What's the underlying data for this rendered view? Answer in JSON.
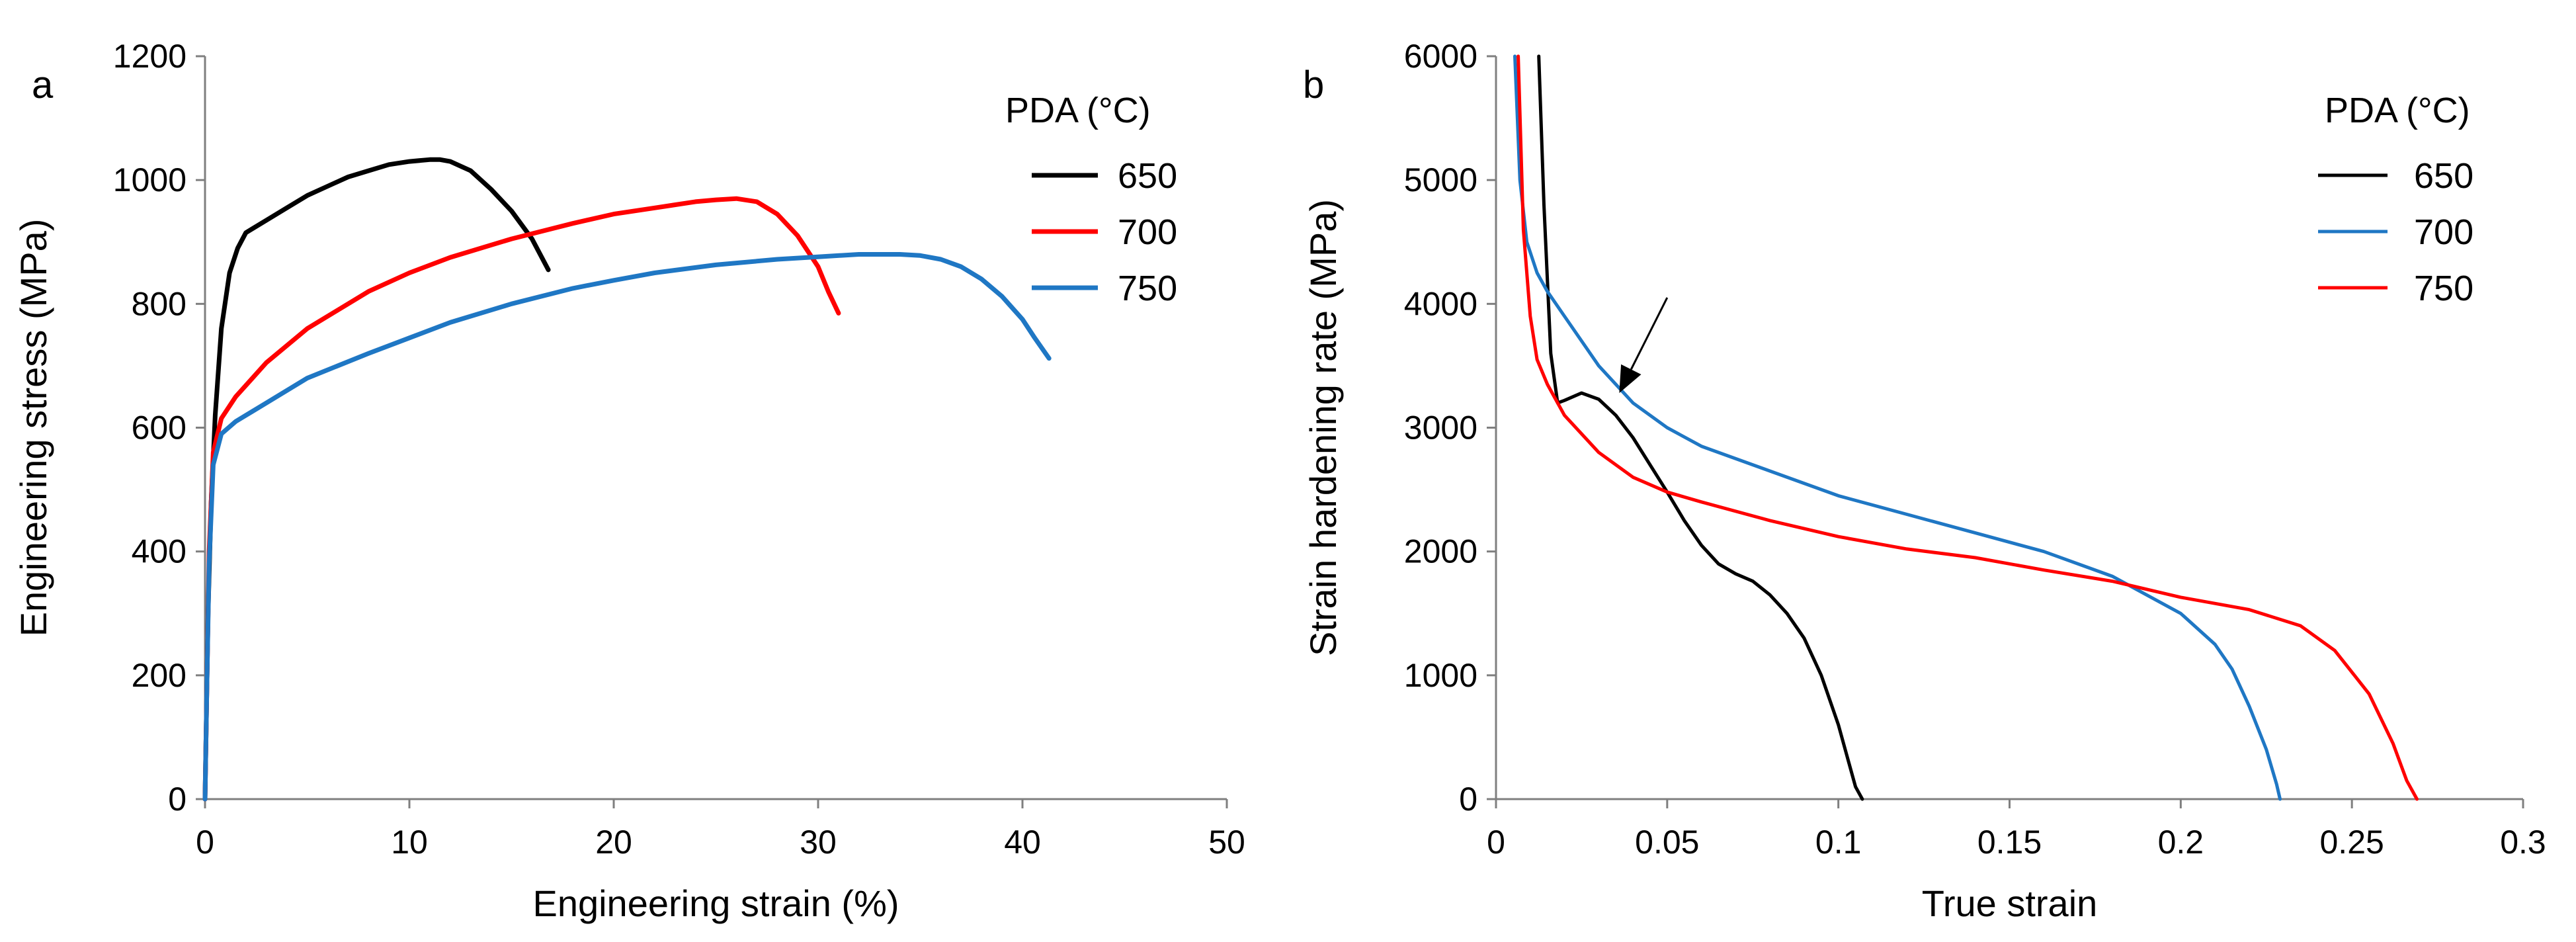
{
  "chart_data": [
    {
      "panel": "a",
      "type": "line",
      "xlabel": "Engineering strain (%)",
      "ylabel": "Engineering stress (MPa)",
      "xlim": [
        0,
        50
      ],
      "ylim": [
        0,
        1200
      ],
      "xticks": [
        0,
        10,
        20,
        30,
        40,
        50
      ],
      "yticks": [
        0,
        200,
        400,
        600,
        800,
        1000,
        1200
      ],
      "legend_title": "PDA (°C)",
      "legend_position": "top-right",
      "series": [
        {
          "name": "650",
          "color": "#000000",
          "x": [
            0,
            0.15,
            0.3,
            0.5,
            0.8,
            1.2,
            1.6,
            2.0,
            3,
            4,
            5,
            6,
            7,
            8,
            9,
            10,
            11,
            11.5,
            12,
            13,
            14,
            15,
            16,
            16.8
          ],
          "y": [
            0,
            300,
            480,
            620,
            760,
            850,
            890,
            915,
            935,
            955,
            975,
            990,
            1005,
            1015,
            1025,
            1030,
            1033,
            1033,
            1030,
            1015,
            985,
            950,
            905,
            855
          ]
        },
        {
          "name": "700",
          "color": "#ff0000",
          "x": [
            0,
            0.1,
            0.2,
            0.4,
            0.8,
            1.5,
            3,
            5,
            8,
            10,
            12,
            15,
            18,
            20,
            22,
            24,
            25,
            26,
            27,
            28,
            29,
            30,
            30.5,
            31
          ],
          "y": [
            0,
            200,
            400,
            560,
            615,
            650,
            705,
            760,
            820,
            850,
            875,
            905,
            930,
            945,
            955,
            965,
            968,
            970,
            965,
            945,
            910,
            860,
            820,
            785
          ]
        },
        {
          "name": "750",
          "color": "#1f77c4",
          "x": [
            0,
            0.1,
            0.2,
            0.4,
            0.8,
            1.5,
            3,
            5,
            8,
            10,
            12,
            15,
            18,
            20,
            22,
            25,
            28,
            30,
            32,
            33,
            34,
            35,
            36,
            37,
            38,
            39,
            40,
            40.6,
            41.3
          ],
          "y": [
            0,
            200,
            380,
            540,
            590,
            610,
            640,
            680,
            720,
            745,
            770,
            800,
            825,
            838,
            850,
            863,
            872,
            876,
            880,
            880,
            880,
            878,
            872,
            860,
            840,
            812,
            775,
            745,
            712
          ]
        }
      ]
    },
    {
      "panel": "b",
      "type": "line",
      "xlabel": "True strain",
      "ylabel": "Strain hardening rate (MPa)",
      "xlim": [
        0,
        0.3
      ],
      "ylim": [
        0,
        6000
      ],
      "xticks": [
        "0",
        "0.05",
        "0.1",
        "0.15",
        "0.2",
        "0.25",
        "0.3"
      ],
      "yticks": [
        0,
        1000,
        2000,
        3000,
        4000,
        5000,
        6000
      ],
      "legend_title": "PDA (°C)",
      "legend_position": "top-right",
      "annotation": {
        "type": "arrow",
        "from": [
          0.05,
          4050
        ],
        "to": [
          0.036,
          3280
        ]
      },
      "series": [
        {
          "name": "650",
          "color": "#000000",
          "x": [
            0.0125,
            0.014,
            0.016,
            0.018,
            0.02,
            0.025,
            0.03,
            0.035,
            0.04,
            0.045,
            0.05,
            0.055,
            0.06,
            0.065,
            0.07,
            0.075,
            0.08,
            0.085,
            0.09,
            0.095,
            0.1,
            0.103,
            0.105,
            0.107
          ],
          "y": [
            6000,
            4800,
            3600,
            3200,
            3220,
            3280,
            3230,
            3100,
            2920,
            2700,
            2480,
            2250,
            2050,
            1900,
            1820,
            1760,
            1650,
            1500,
            1300,
            1000,
            600,
            300,
            100,
            0
          ]
        },
        {
          "name": "700",
          "color": "#1f77c4",
          "x": [
            0.0055,
            0.007,
            0.009,
            0.012,
            0.015,
            0.02,
            0.03,
            0.04,
            0.05,
            0.06,
            0.08,
            0.1,
            0.12,
            0.14,
            0.16,
            0.18,
            0.2,
            0.21,
            0.215,
            0.22,
            0.225,
            0.228,
            0.229
          ],
          "y": [
            6000,
            5000,
            4500,
            4250,
            4100,
            3900,
            3500,
            3200,
            3000,
            2850,
            2650,
            2450,
            2300,
            2150,
            2000,
            1800,
            1500,
            1250,
            1050,
            750,
            400,
            120,
            0
          ]
        },
        {
          "name": "750",
          "color": "#ff0000",
          "x": [
            0.0065,
            0.008,
            0.01,
            0.012,
            0.015,
            0.02,
            0.03,
            0.04,
            0.05,
            0.06,
            0.08,
            0.1,
            0.12,
            0.14,
            0.16,
            0.18,
            0.2,
            0.22,
            0.235,
            0.245,
            0.255,
            0.262,
            0.266,
            0.269
          ],
          "y": [
            6000,
            4600,
            3900,
            3550,
            3350,
            3100,
            2800,
            2600,
            2480,
            2400,
            2250,
            2120,
            2020,
            1950,
            1850,
            1760,
            1630,
            1530,
            1400,
            1200,
            850,
            450,
            150,
            0
          ]
        }
      ]
    }
  ]
}
